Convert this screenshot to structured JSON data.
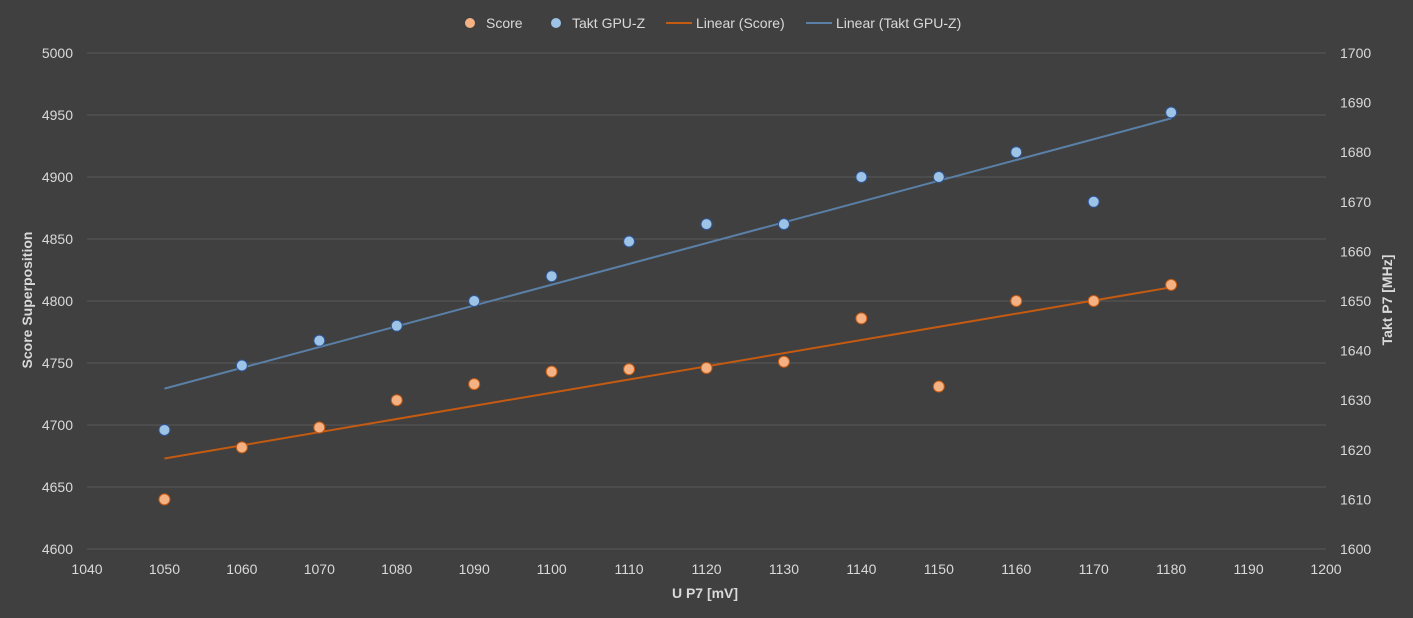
{
  "chart_data": {
    "type": "scatter",
    "title": "",
    "xlabel": "U P7 [mV]",
    "ylabel": "Score Superposition",
    "y2label": "Takt P7 [MHz]",
    "xlim": [
      1040,
      1200
    ],
    "ylim": [
      4600,
      5000
    ],
    "y2lim": [
      1600,
      1700
    ],
    "xticks": [
      1040,
      1050,
      1060,
      1070,
      1080,
      1090,
      1100,
      1110,
      1120,
      1130,
      1140,
      1150,
      1160,
      1170,
      1180,
      1190,
      1200
    ],
    "yticks": [
      4600,
      4650,
      4700,
      4750,
      4800,
      4850,
      4900,
      4950,
      5000
    ],
    "y2ticks": [
      1600,
      1610,
      1620,
      1630,
      1640,
      1650,
      1660,
      1670,
      1680,
      1690,
      1700
    ],
    "grid": "horizontal",
    "legend_position": "top",
    "x": [
      1050,
      1060,
      1070,
      1080,
      1090,
      1100,
      1110,
      1120,
      1130,
      1140,
      1150,
      1160,
      1170,
      1180
    ],
    "series": [
      {
        "name": "Score",
        "axis": "left",
        "color": "#f4b183",
        "values": [
          4640,
          4682,
          4698,
          4720,
          4733,
          4743,
          4745,
          4746,
          4751,
          4786,
          4731,
          4800,
          4800,
          4813
        ]
      },
      {
        "name": "Takt GPU-Z",
        "axis": "right",
        "color": "#9dc3e6",
        "values": [
          1624,
          1637,
          1642,
          1645,
          1650,
          1655,
          1662,
          1665.5,
          1665.5,
          1675,
          1675,
          1680,
          1670,
          1688
        ]
      }
    ],
    "trendlines": [
      {
        "name": "Linear (Score)",
        "of": "Score",
        "color": "#c55a11"
      },
      {
        "name": "Linear (Takt GPU-Z)",
        "of": "Takt GPU-Z",
        "color": "#5b80a8"
      }
    ]
  }
}
